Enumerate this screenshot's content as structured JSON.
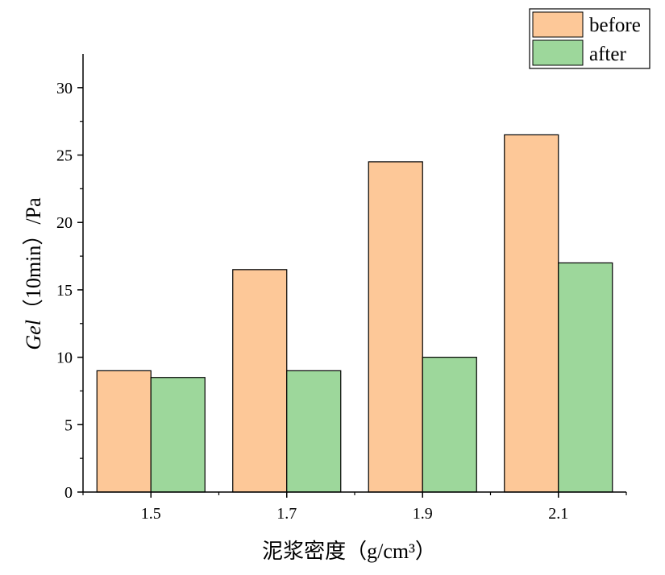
{
  "chart_data": {
    "type": "bar",
    "categories": [
      "1.5",
      "1.7",
      "1.9",
      "2.1"
    ],
    "series": [
      {
        "name": "before",
        "values": [
          9,
          16.5,
          24.5,
          26.5
        ],
        "color": "#FDC898"
      },
      {
        "name": "after",
        "values": [
          8.5,
          9,
          10,
          17
        ],
        "color": "#9DD79B"
      }
    ],
    "title": "",
    "xlabel": "泥浆密度（g/cm³）",
    "ylabel_italic": "Gel",
    "ylabel_rest": "（10min）/Pa",
    "ylabel": "Gel（10min）/Pa",
    "ylim": [
      0,
      32.5
    ],
    "yticks": [
      0,
      5,
      10,
      15,
      20,
      25,
      30
    ],
    "ytick_labels": [
      "0",
      "5",
      "10",
      "15",
      "20",
      "25",
      "30"
    ],
    "grid": false,
    "legend_position": "top-right",
    "bar_edge_color": "#000000"
  }
}
